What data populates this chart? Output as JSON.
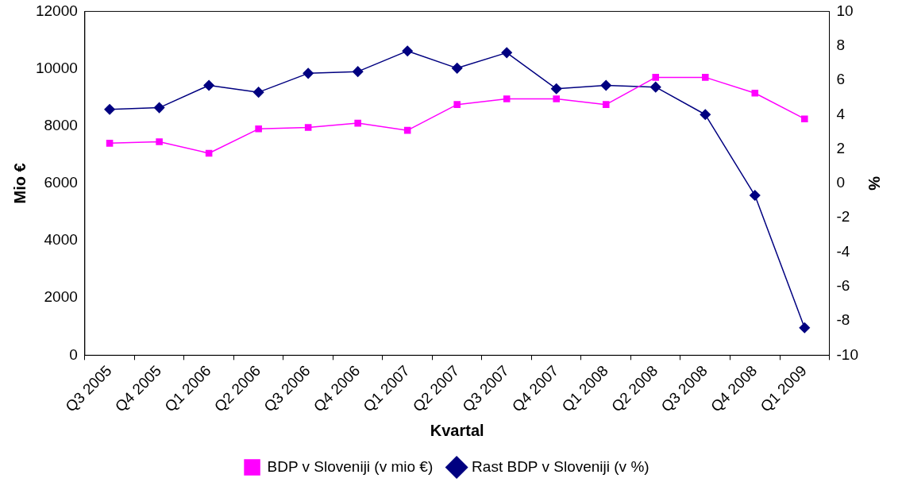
{
  "chart_data": {
    "type": "line",
    "xlabel": "Kvartal",
    "ylabel": "Mio €",
    "y2label": "%",
    "categories": [
      "Q3 2005",
      "Q4 2005",
      "Q1 2006",
      "Q2 2006",
      "Q3 2006",
      "Q4 2006",
      "Q1 2007",
      "Q2 2007",
      "Q3 2007",
      "Q4 2007",
      "Q1 2008",
      "Q2 2008",
      "Q3 2008",
      "Q4 2008",
      "Q1 2009"
    ],
    "series": [
      {
        "name": "BDP v Sloveniji (v mio €)",
        "color": "#ff00ff",
        "marker": "square",
        "values": [
          7400,
          7450,
          7050,
          7900,
          7950,
          8100,
          7850,
          8750,
          8950,
          8950,
          8750,
          9700,
          9700,
          9150,
          8250
        ]
      },
      {
        "name": "Rast BDP v Sloveniji (v %)",
        "color": "#000080",
        "marker": "diamond",
        "axis": "y2",
        "values": [
          4.3,
          4.4,
          5.7,
          5.3,
          6.4,
          6.5,
          7.7,
          6.7,
          7.6,
          5.5,
          5.7,
          5.6,
          4.0,
          -0.7,
          -8.4
        ]
      }
    ],
    "ylim": [
      0,
      12000
    ],
    "yticks": [
      0,
      2000,
      4000,
      6000,
      8000,
      10000,
      12000
    ],
    "y2lim": [
      -10,
      10
    ],
    "y2ticks": [
      -10,
      -8,
      -6,
      -4,
      -2,
      0,
      2,
      4,
      6,
      8,
      10
    ],
    "grid": false,
    "legend": "bottom",
    "line_style": "solid"
  }
}
